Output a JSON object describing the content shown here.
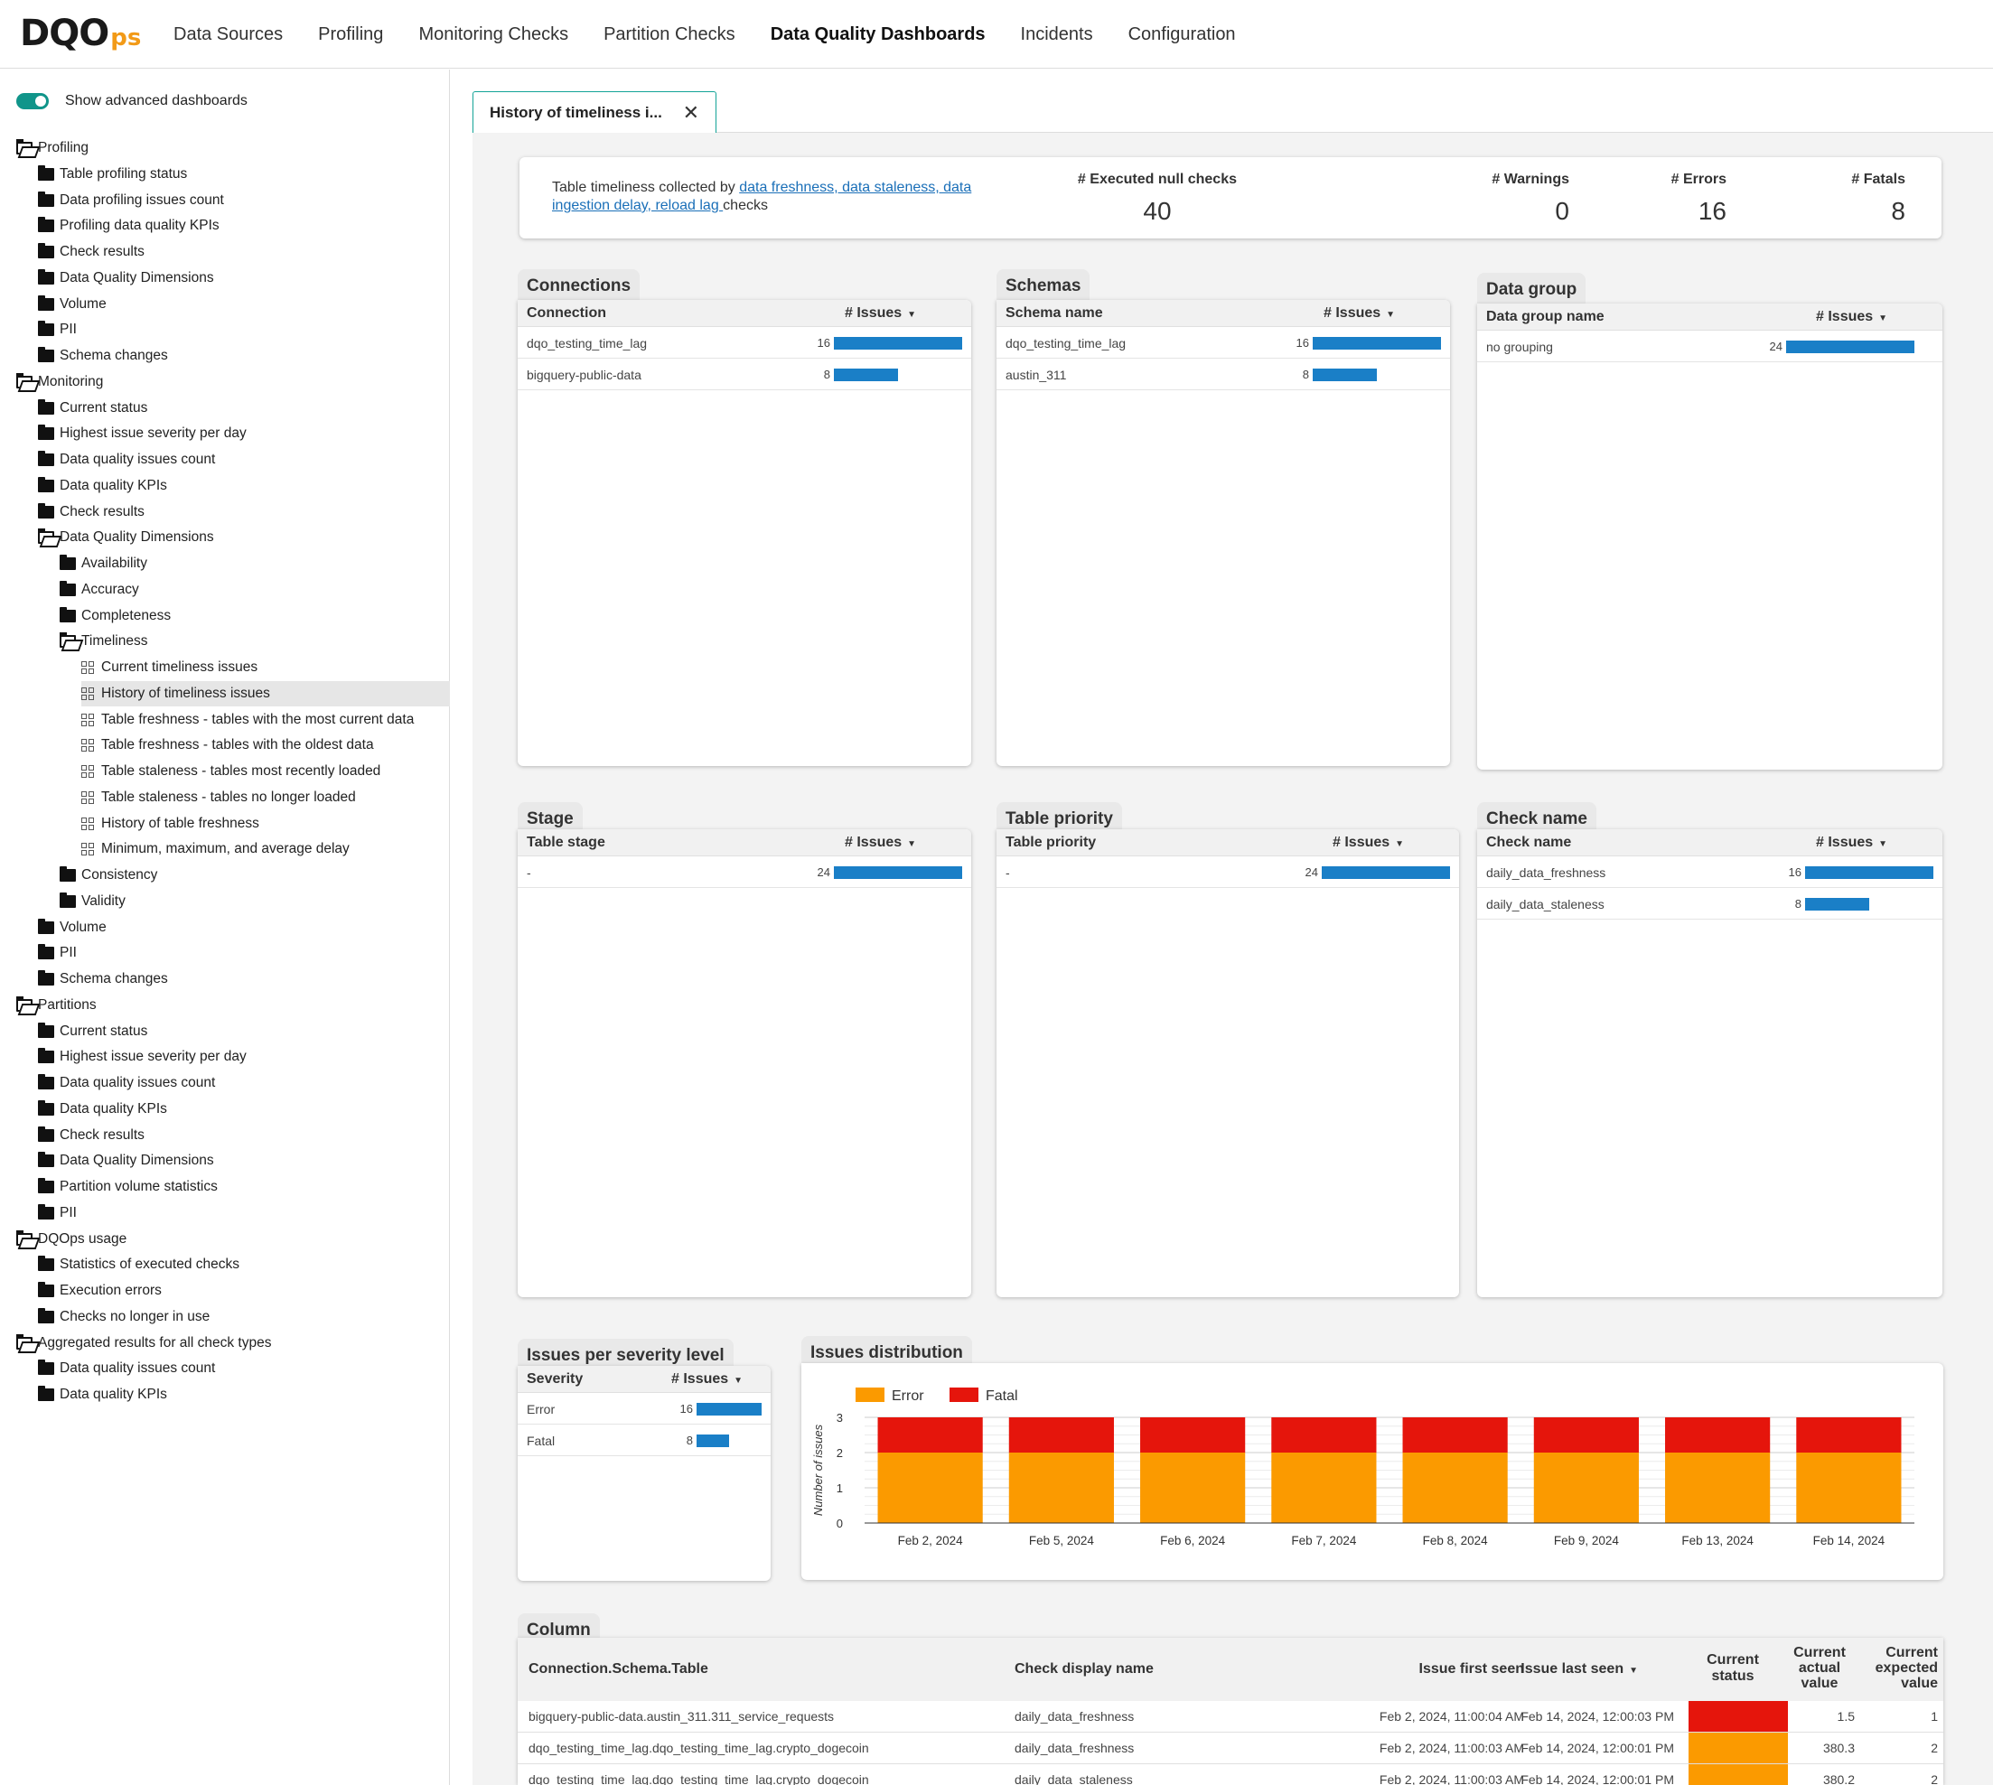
{
  "logo": {
    "main": "DQO",
    "suffix": "ps"
  },
  "nav": [
    "Data Sources",
    "Profiling",
    "Monitoring Checks",
    "Partition Checks",
    "Data Quality Dashboards",
    "Incidents",
    "Configuration"
  ],
  "nav_active": "Data Quality Dashboards",
  "sidebar": {
    "toggle_label": "Show advanced dashboards",
    "tree": [
      {
        "label": "Profiling",
        "level": 0,
        "icon": "folder-open-icon"
      },
      {
        "label": "Table profiling status",
        "level": 1,
        "icon": "folder-icon"
      },
      {
        "label": "Data profiling issues count",
        "level": 1,
        "icon": "folder-icon"
      },
      {
        "label": "Profiling data quality KPIs",
        "level": 1,
        "icon": "folder-icon"
      },
      {
        "label": "Check results",
        "level": 1,
        "icon": "folder-icon"
      },
      {
        "label": "Data Quality Dimensions",
        "level": 1,
        "icon": "folder-icon"
      },
      {
        "label": "Volume",
        "level": 1,
        "icon": "folder-icon"
      },
      {
        "label": "PII",
        "level": 1,
        "icon": "folder-icon"
      },
      {
        "label": "Schema changes",
        "level": 1,
        "icon": "folder-icon"
      },
      {
        "label": "Monitoring",
        "level": 0,
        "icon": "folder-open-icon"
      },
      {
        "label": "Current status",
        "level": 1,
        "icon": "folder-icon"
      },
      {
        "label": "Highest issue severity per day",
        "level": 1,
        "icon": "folder-icon"
      },
      {
        "label": "Data quality issues count",
        "level": 1,
        "icon": "folder-icon"
      },
      {
        "label": "Data quality KPIs",
        "level": 1,
        "icon": "folder-icon"
      },
      {
        "label": "Check results",
        "level": 1,
        "icon": "folder-icon"
      },
      {
        "label": "Data Quality Dimensions",
        "level": 1,
        "icon": "folder-open-icon"
      },
      {
        "label": "Availability",
        "level": 2,
        "icon": "folder-icon"
      },
      {
        "label": "Accuracy",
        "level": 2,
        "icon": "folder-icon"
      },
      {
        "label": "Completeness",
        "level": 2,
        "icon": "folder-icon"
      },
      {
        "label": "Timeliness",
        "level": 2,
        "icon": "folder-open-icon"
      },
      {
        "label": "Current timeliness issues",
        "level": 3,
        "icon": "dashboard-icon"
      },
      {
        "label": "History of timeliness issues",
        "level": 3,
        "icon": "dashboard-icon",
        "selected": true
      },
      {
        "label": "Table freshness - tables with the most current data",
        "level": 3,
        "icon": "dashboard-icon"
      },
      {
        "label": "Table freshness - tables with the oldest data",
        "level": 3,
        "icon": "dashboard-icon"
      },
      {
        "label": "Table staleness - tables most recently loaded",
        "level": 3,
        "icon": "dashboard-icon"
      },
      {
        "label": "Table staleness - tables no longer loaded",
        "level": 3,
        "icon": "dashboard-icon"
      },
      {
        "label": "History of table freshness",
        "level": 3,
        "icon": "dashboard-icon"
      },
      {
        "label": "Minimum, maximum, and average delay",
        "level": 3,
        "icon": "dashboard-icon"
      },
      {
        "label": "Consistency",
        "level": 2,
        "icon": "folder-icon"
      },
      {
        "label": "Validity",
        "level": 2,
        "icon": "folder-icon"
      },
      {
        "label": "Volume",
        "level": 1,
        "icon": "folder-icon"
      },
      {
        "label": "PII",
        "level": 1,
        "icon": "folder-icon"
      },
      {
        "label": "Schema changes",
        "level": 1,
        "icon": "folder-icon"
      },
      {
        "label": "Partitions",
        "level": 0,
        "icon": "folder-open-icon"
      },
      {
        "label": "Current status",
        "level": 1,
        "icon": "folder-icon"
      },
      {
        "label": "Highest issue severity per day",
        "level": 1,
        "icon": "folder-icon"
      },
      {
        "label": "Data quality issues count",
        "level": 1,
        "icon": "folder-icon"
      },
      {
        "label": "Data quality KPIs",
        "level": 1,
        "icon": "folder-icon"
      },
      {
        "label": "Check results",
        "level": 1,
        "icon": "folder-icon"
      },
      {
        "label": "Data Quality Dimensions",
        "level": 1,
        "icon": "folder-icon"
      },
      {
        "label": "Partition volume statistics",
        "level": 1,
        "icon": "folder-icon"
      },
      {
        "label": "PII",
        "level": 1,
        "icon": "folder-icon"
      },
      {
        "label": "DQOps usage",
        "level": 0,
        "icon": "folder-open-icon"
      },
      {
        "label": "Statistics of executed checks",
        "level": 1,
        "icon": "folder-icon"
      },
      {
        "label": "Execution errors",
        "level": 1,
        "icon": "folder-icon"
      },
      {
        "label": "Checks no longer in use",
        "level": 1,
        "icon": "folder-icon"
      },
      {
        "label": "Aggregated results for all check types",
        "level": 0,
        "icon": "folder-open-icon"
      },
      {
        "label": "Data quality issues count",
        "level": 1,
        "icon": "folder-icon"
      },
      {
        "label": "Data quality KPIs",
        "level": 1,
        "icon": "folder-icon"
      }
    ]
  },
  "tab": {
    "label": "History of timeliness i...",
    "close": "✕"
  },
  "summary": {
    "desc_prefix": "Table timeliness collected by ",
    "desc_links": "data freshness, data staleness, data ingestion delay, reload lag ",
    "desc_suffix": "checks",
    "executed_label": "# Executed null checks",
    "executed_value": "40",
    "warnings_label": "# Warnings",
    "warnings_value": "0",
    "errors_label": "# Errors",
    "errors_value": "16",
    "fatals_label": "# Fatals",
    "fatals_value": "8"
  },
  "cards": [
    {
      "title": "Connections",
      "col1": "Connection",
      "col2": "# Issues",
      "rows": [
        {
          "name": "dqo_testing_time_lag",
          "value": 16
        },
        {
          "name": "bigquery-public-data",
          "value": 8
        }
      ]
    },
    {
      "title": "Schemas",
      "col1": "Schema name",
      "col2": "# Issues",
      "rows": [
        {
          "name": "dqo_testing_time_lag",
          "value": 16
        },
        {
          "name": "austin_311",
          "value": 8
        }
      ]
    },
    {
      "title": "Data group",
      "col1": "Data group name",
      "col2": "# Issues",
      "rows": [
        {
          "name": "no grouping",
          "value": 24
        }
      ]
    },
    {
      "title": "Stage",
      "col1": "Table stage",
      "col2": "# Issues",
      "rows": [
        {
          "name": "-",
          "value": 24
        }
      ]
    },
    {
      "title": "Table priority",
      "col1": "Table priority",
      "col2": "# Issues",
      "rows": [
        {
          "name": "-",
          "value": 24
        }
      ]
    },
    {
      "title": "Check name",
      "col1": "Check name",
      "col2": "# Issues",
      "rows": [
        {
          "name": "daily_data_freshness",
          "value": 16
        },
        {
          "name": "daily_data_staleness",
          "value": 8
        }
      ]
    },
    {
      "title": "Issues per severity level",
      "col1": "Severity",
      "col2": "# Issues",
      "rows": [
        {
          "name": "Error",
          "value": 16
        },
        {
          "name": "Fatal",
          "value": 8
        }
      ]
    }
  ],
  "distribution_title": "Issues distribution",
  "chart_data": {
    "type": "bar",
    "stacked": true,
    "categories": [
      "Feb 2, 2024",
      "Feb 5, 2024",
      "Feb 6, 2024",
      "Feb 7, 2024",
      "Feb 8, 2024",
      "Feb 9, 2024",
      "Feb 13, 2024",
      "Feb 14, 2024"
    ],
    "series": [
      {
        "name": "Error",
        "values": [
          2,
          2,
          2,
          2,
          2,
          2,
          2,
          2
        ],
        "color": "#fb9a00"
      },
      {
        "name": "Fatal",
        "values": [
          1,
          1,
          1,
          1,
          1,
          1,
          1,
          1
        ],
        "color": "#e5150c"
      }
    ],
    "ylabel": "Number of issues",
    "ylim": [
      0,
      3
    ],
    "yticks": [
      0,
      1,
      2,
      3
    ],
    "legend": "top-left",
    "grid": true
  },
  "column_table": {
    "title": "Column",
    "headers": [
      "Connection.Schema.Table",
      "Check display name",
      "Issue first seen",
      "Issue last seen",
      "Current status",
      "Current actual value",
      "Current expected value"
    ],
    "rows": [
      {
        "table": "bigquery-public-data.austin_311.311_service_requests",
        "check": "daily_data_freshness",
        "first": "Feb 2, 2024, 11:00:04 AM",
        "last": "Feb 14, 2024, 12:00:03 PM",
        "status_color": "#e5150c",
        "actual": "1.5",
        "expected": "1"
      },
      {
        "table": "dqo_testing_time_lag.dqo_testing_time_lag.crypto_dogecoin",
        "check": "daily_data_freshness",
        "first": "Feb 2, 2024, 11:00:03 AM",
        "last": "Feb 14, 2024, 12:00:01 PM",
        "status_color": "#fb9a00",
        "actual": "380.3",
        "expected": "2"
      },
      {
        "table": "dqo_testing_time_lag.dqo_testing_time_lag.crypto_dogecoin",
        "check": "daily_data_staleness",
        "first": "Feb 2, 2024, 11:00:03 AM",
        "last": "Feb 14, 2024, 12:00:01 PM",
        "status_color": "#fb9a00",
        "actual": "380.2",
        "expected": "2"
      }
    ]
  },
  "colors": {
    "accent": "#13a397",
    "bar": "#1a7fc7",
    "error": "#fb9a00",
    "fatal": "#e5150c"
  }
}
